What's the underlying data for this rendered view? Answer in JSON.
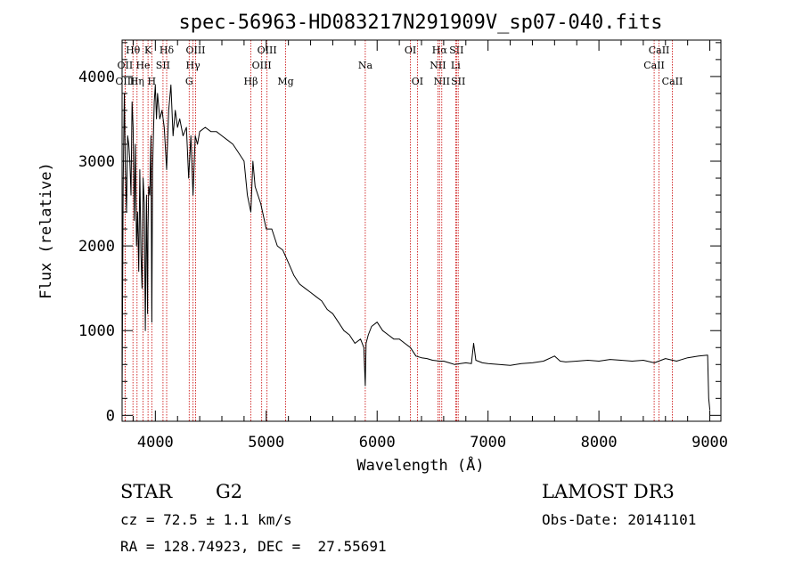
{
  "chart_data": {
    "type": "line",
    "title": "spec-56963-HD083217N291909V_sp07-040.fits",
    "xlabel": "Wavelength (Å)",
    "ylabel": "Flux (relative)",
    "xlim": [
      3700,
      9100
    ],
    "ylim": [
      -70,
      4430
    ],
    "xticks": [
      4000,
      5000,
      6000,
      7000,
      8000,
      9000
    ],
    "yticks": [
      0,
      1000,
      2000,
      3000,
      4000
    ],
    "series": [
      {
        "x": [
          3700,
          3710,
          3720,
          3730,
          3740,
          3750,
          3760,
          3770,
          3780,
          3790,
          3800,
          3810,
          3820,
          3830,
          3840,
          3850,
          3860,
          3870,
          3880,
          3890,
          3900,
          3910,
          3920,
          3930,
          3934,
          3940,
          3950,
          3960,
          3968,
          3975,
          3990,
          4000,
          4010,
          4020,
          4040,
          4060,
          4080,
          4102,
          4120,
          4140,
          4160,
          4180,
          4200,
          4220,
          4250,
          4280,
          4300,
          4320,
          4340,
          4360,
          4380,
          4400,
          4450,
          4500,
          4550,
          4600,
          4650,
          4700,
          4750,
          4800,
          4830,
          4861,
          4880,
          4900,
          4950,
          5000,
          5050,
          5100,
          5150,
          5200,
          5250,
          5300,
          5350,
          5400,
          5450,
          5500,
          5550,
          5600,
          5650,
          5700,
          5750,
          5800,
          5850,
          5880,
          5893,
          5900,
          5920,
          5950,
          6000,
          6050,
          6100,
          6150,
          6200,
          6250,
          6300,
          6350,
          6400,
          6450,
          6500,
          6563,
          6600,
          6650,
          6700,
          6750,
          6800,
          6850,
          6870,
          6890,
          6950,
          7000,
          7100,
          7200,
          7300,
          7400,
          7500,
          7600,
          7650,
          7700,
          7800,
          7900,
          8000,
          8100,
          8200,
          8300,
          8400,
          8500,
          8600,
          8700,
          8800,
          8900,
          8980,
          8990,
          9000
        ],
        "y": [
          200,
          2700,
          3800,
          2900,
          2400,
          3300,
          3200,
          3000,
          2600,
          3700,
          3400,
          2300,
          3200,
          2000,
          2400,
          1700,
          2900,
          1900,
          1500,
          2800,
          2500,
          1000,
          2600,
          1200,
          2200,
          2700,
          2600,
          3300,
          1100,
          2900,
          3700,
          3900,
          3500,
          3800,
          3500,
          3600,
          3400,
          2900,
          3600,
          3900,
          3300,
          3600,
          3400,
          3500,
          3300,
          3400,
          2800,
          3300,
          2600,
          3300,
          3200,
          3350,
          3400,
          3350,
          3350,
          3300,
          3250,
          3200,
          3100,
          3000,
          2600,
          2400,
          3000,
          2700,
          2500,
          2200,
          2200,
          2000,
          1950,
          1800,
          1650,
          1550,
          1500,
          1450,
          1400,
          1350,
          1250,
          1200,
          1100,
          1000,
          950,
          850,
          900,
          800,
          350,
          850,
          950,
          1050,
          1100,
          1000,
          950,
          900,
          900,
          850,
          800,
          700,
          680,
          670,
          650,
          640,
          640,
          620,
          600,
          610,
          620,
          610,
          850,
          650,
          620,
          610,
          600,
          590,
          610,
          620,
          640,
          700,
          640,
          630,
          640,
          650,
          640,
          660,
          650,
          640,
          650,
          620,
          670,
          640,
          680,
          700,
          710,
          200,
          60
        ]
      }
    ],
    "spectral_lines": [
      {
        "label": "Hθ",
        "x": 3798,
        "row": 1
      },
      {
        "label": "K",
        "x": 3934,
        "row": 1
      },
      {
        "label": "Hδ",
        "x": 4102,
        "row": 1
      },
      {
        "label": "OII",
        "x": 3727,
        "row": 2
      },
      {
        "label": "He",
        "x": 3889,
        "row": 2
      },
      {
        "label": "SII",
        "x": 4069,
        "row": 2
      },
      {
        "label": "OIII",
        "x": 3727,
        "row": 3
      },
      {
        "label": "Hη",
        "x": 3835,
        "row": 3
      },
      {
        "label": "H",
        "x": 3968,
        "row": 3
      },
      {
        "label": "OIII",
        "x": 4363,
        "row": 1
      },
      {
        "label": "Hγ",
        "x": 4340,
        "row": 2
      },
      {
        "label": "G",
        "x": 4305,
        "row": 3
      },
      {
        "label": "Hβ",
        "x": 4861,
        "row": 3
      },
      {
        "label": "OIII",
        "x": 5007,
        "row": 1
      },
      {
        "label": "OIII",
        "x": 4959,
        "row": 2
      },
      {
        "label": "Mg",
        "x": 5175,
        "row": 3
      },
      {
        "label": "Na",
        "x": 5893,
        "row": 2
      },
      {
        "label": "OI",
        "x": 6300,
        "row": 1
      },
      {
        "label": "OI",
        "x": 6363,
        "row": 3
      },
      {
        "label": "Hα",
        "x": 6563,
        "row": 1
      },
      {
        "label": "SII",
        "x": 6716,
        "row": 1
      },
      {
        "label": "NII",
        "x": 6548,
        "row": 2
      },
      {
        "label": "Li",
        "x": 6708,
        "row": 2
      },
      {
        "label": "NII",
        "x": 6583,
        "row": 3
      },
      {
        "label": "SII",
        "x": 6731,
        "row": 3
      },
      {
        "label": "CaII",
        "x": 8542,
        "row": 1
      },
      {
        "label": "CaII",
        "x": 8498,
        "row": 2
      },
      {
        "label": "CaII",
        "x": 8662,
        "row": 3
      }
    ]
  },
  "info": {
    "object_class": "STAR",
    "subclass": "G2",
    "survey": "LAMOST DR3",
    "cz": "cz = 72.5 ± 1.1 km/s",
    "obs_date": "Obs-Date: 20141101",
    "coords": "RA = 128.74923, DEC =  27.55691"
  },
  "colors": {
    "spectrum": "#000000",
    "line_marker": "#c80000",
    "axes": "#000000"
  }
}
